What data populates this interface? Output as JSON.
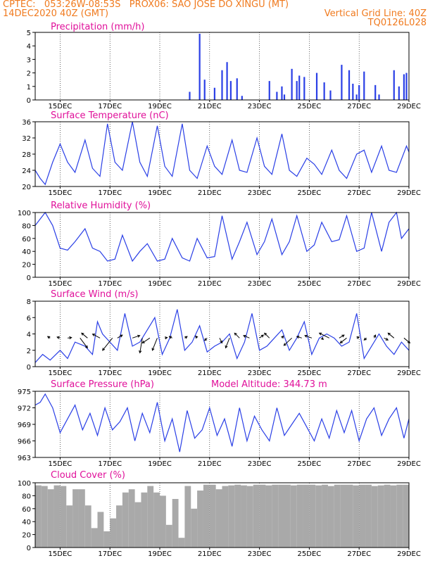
{
  "header": {
    "line1_left": "CPTEC:   053:26W-08:53S   PROX06: SAO JOSE DO XINGU (MT)",
    "line2_left": "14DEC2020 40Z (GMT)",
    "line2_right": "Vertical Grid Line: 40Z",
    "line3_right": "TQ0126L028"
  },
  "colors": {
    "header": "#f07a1e",
    "title": "#e0109a",
    "series": "#2a3fe6",
    "cloud": "#a9a9a9"
  },
  "x_axis": {
    "start_day": 14,
    "end_day": 29,
    "labels": [
      "15DEC",
      "17DEC",
      "19DEC",
      "21DEC",
      "23DEC",
      "25DEC",
      "27DEC",
      "29DEC"
    ],
    "label_days": [
      15,
      17,
      19,
      21,
      23,
      25,
      27,
      29
    ]
  },
  "chart_data": [
    {
      "type": "bar",
      "title": "Precipitation (mm/h)",
      "ylim": [
        0,
        5
      ],
      "yticks": [
        "0",
        "1",
        "2",
        "3",
        "4",
        "5"
      ],
      "x": [
        20.2,
        20.6,
        20.8,
        21.2,
        21.5,
        21.7,
        21.85,
        22.1,
        22.3,
        23.4,
        23.7,
        23.9,
        24.0,
        24.3,
        24.5,
        24.6,
        24.8,
        25.3,
        25.6,
        25.85,
        26.3,
        26.6,
        26.75,
        26.9,
        27.0,
        27.2,
        27.65,
        27.8,
        28.4,
        28.6,
        28.8,
        28.9
      ],
      "values": [
        0.6,
        4.9,
        1.5,
        0.9,
        2.2,
        2.8,
        1.4,
        1.6,
        0.3,
        1.4,
        0.6,
        1.0,
        0.4,
        2.3,
        1.4,
        1.8,
        1.7,
        2.0,
        1.3,
        0.7,
        2.6,
        2.2,
        1.2,
        0.4,
        1.1,
        2.1,
        1.1,
        0.4,
        2.2,
        1.0,
        1.9,
        2.0
      ]
    },
    {
      "type": "line",
      "title": "Surface Temperature (nC)",
      "ylim": [
        20,
        36
      ],
      "yticks": [
        "20",
        "24",
        "28",
        "32",
        "36"
      ],
      "x": [
        14.0,
        14.2,
        14.4,
        14.7,
        15.0,
        15.3,
        15.6,
        16.0,
        16.3,
        16.6,
        16.9,
        17.2,
        17.5,
        17.9,
        18.2,
        18.5,
        18.9,
        19.2,
        19.5,
        19.9,
        20.2,
        20.5,
        20.9,
        21.2,
        21.5,
        21.9,
        22.2,
        22.5,
        22.9,
        23.2,
        23.5,
        23.9,
        24.2,
        24.5,
        24.9,
        25.2,
        25.5,
        25.9,
        26.2,
        26.5,
        26.9,
        27.2,
        27.5,
        27.9,
        28.2,
        28.5,
        28.9,
        29.0
      ],
      "values": [
        24,
        22,
        20.5,
        26,
        30.5,
        26,
        23.5,
        31.5,
        24.5,
        22.5,
        35.5,
        26,
        24,
        36,
        26,
        22.5,
        35,
        25,
        22.5,
        35.5,
        24,
        22,
        30,
        25,
        23,
        31.5,
        24,
        23.5,
        32,
        25,
        23,
        33,
        24,
        22.5,
        27,
        25.5,
        23,
        29,
        24,
        22,
        28,
        29,
        23.5,
        30,
        24,
        23.5,
        30,
        28.5
      ]
    },
    {
      "type": "line",
      "title": "Relative Humidity (%)",
      "ylim": [
        0,
        100
      ],
      "yticks": [
        "0",
        "20",
        "40",
        "60",
        "80",
        "100"
      ],
      "x": [
        14.0,
        14.4,
        14.7,
        15.0,
        15.3,
        15.6,
        16.0,
        16.3,
        16.6,
        16.9,
        17.2,
        17.5,
        17.9,
        18.2,
        18.5,
        18.9,
        19.2,
        19.5,
        19.9,
        20.2,
        20.5,
        20.9,
        21.2,
        21.5,
        21.9,
        22.2,
        22.5,
        22.9,
        23.2,
        23.5,
        23.9,
        24.2,
        24.5,
        24.9,
        25.2,
        25.5,
        25.9,
        26.2,
        26.5,
        26.9,
        27.2,
        27.5,
        27.9,
        28.2,
        28.5,
        28.7,
        29.0
      ],
      "values": [
        80,
        100,
        80,
        45,
        42,
        55,
        75,
        45,
        40,
        25,
        28,
        65,
        25,
        40,
        52,
        25,
        28,
        60,
        30,
        25,
        60,
        30,
        32,
        95,
        28,
        55,
        85,
        35,
        55,
        90,
        35,
        55,
        95,
        40,
        50,
        85,
        55,
        58,
        95,
        40,
        45,
        100,
        40,
        85,
        100,
        60,
        75
      ]
    },
    {
      "type": "line",
      "title": "Surface Wind (m/s)",
      "ylim": [
        0,
        8
      ],
      "yticks": [
        "0",
        "2",
        "4",
        "6",
        "8"
      ],
      "x": [
        14.0,
        14.3,
        14.6,
        15.0,
        15.3,
        15.6,
        16.0,
        16.3,
        16.5,
        16.7,
        17.0,
        17.3,
        17.6,
        17.9,
        18.2,
        18.5,
        18.8,
        19.1,
        19.4,
        19.7,
        20.0,
        20.3,
        20.6,
        20.9,
        21.2,
        21.5,
        21.8,
        22.1,
        22.4,
        22.7,
        23.0,
        23.3,
        23.6,
        23.9,
        24.2,
        24.5,
        24.8,
        25.1,
        25.4,
        25.7,
        26.0,
        26.3,
        26.6,
        26.9,
        27.2,
        27.5,
        27.8,
        28.1,
        28.4,
        28.7,
        29.0
      ],
      "values": [
        0.5,
        1.5,
        0.8,
        2.0,
        1.0,
        3.0,
        2.5,
        1.5,
        5.5,
        4.0,
        3.0,
        2.0,
        6.5,
        2.5,
        3.0,
        4.5,
        6.0,
        1.5,
        3.5,
        7.0,
        2.0,
        3.0,
        5.0,
        1.8,
        2.5,
        3.0,
        4.0,
        1.0,
        3.0,
        6.5,
        2.0,
        2.5,
        3.5,
        4.5,
        2.0,
        3.5,
        5.5,
        1.5,
        3.5,
        4.0,
        3.5,
        2.5,
        3.0,
        6.5,
        1.0,
        2.5,
        4.0,
        2.5,
        1.5,
        3.0,
        2.0
      ],
      "arrows": {
        "x": [
          14.6,
          15.0,
          15.3,
          15.8,
          16.1,
          16.6,
          17.1,
          17.3,
          17.9,
          18.3,
          18.6,
          18.9,
          19.2,
          19.5,
          20.0,
          20.5,
          20.9,
          21.4,
          21.8,
          22.2,
          22.6,
          23.0,
          23.4,
          23.9,
          24.3,
          24.7,
          25.1,
          25.5,
          25.8,
          26.2,
          26.5,
          26.9,
          27.3,
          27.6,
          28.0,
          28.4,
          28.8
        ],
        "u": [
          -0.5,
          -0.6,
          0.8,
          1.5,
          -1.2,
          -1.5,
          -2.0,
          1.0,
          1.5,
          -0.5,
          -1.5,
          -1.0,
          0.5,
          -0.6,
          0.5,
          -0.3,
          -0.5,
          0.5,
          -0.8,
          -1.0,
          -1.2,
          0.8,
          -1.0,
          0.3,
          -1.6,
          -1.0,
          -1.4,
          0.3,
          -2.0,
          1.0,
          -1.3,
          0.5,
          -0.5,
          0.3,
          0.8,
          -1.2,
          1.2
        ],
        "v": [
          0.3,
          0.2,
          0.1,
          -2.0,
          1.0,
          0.8,
          -2.5,
          0.6,
          0.5,
          -3.0,
          -1.0,
          -2.5,
          0.1,
          0.3,
          0.3,
          0.4,
          -0.5,
          -1.0,
          -2.0,
          1.0,
          0.5,
          0.6,
          1.0,
          0.4,
          -1.5,
          0.3,
          0.5,
          -0.3,
          1.0,
          0.6,
          -1.0,
          0.2,
          -0.4,
          0.6,
          -0.4,
          1.0,
          -1.0
        ]
      }
    },
    {
      "type": "line",
      "title": "Surface Pressure (hPa)",
      "annotation": "Model Altitude: 344.73 m",
      "ylim": [
        963,
        975
      ],
      "yticks": [
        "963",
        "966",
        "969",
        "972",
        "975"
      ],
      "x": [
        14.0,
        14.2,
        14.4,
        14.7,
        15.0,
        15.3,
        15.6,
        15.9,
        16.2,
        16.5,
        16.8,
        17.1,
        17.4,
        17.7,
        18.0,
        18.3,
        18.6,
        18.9,
        19.2,
        19.5,
        19.8,
        20.1,
        20.4,
        20.7,
        21.0,
        21.3,
        21.6,
        21.9,
        22.2,
        22.5,
        22.8,
        23.1,
        23.4,
        23.7,
        24.0,
        24.3,
        24.6,
        24.9,
        25.2,
        25.5,
        25.8,
        26.1,
        26.4,
        26.7,
        27.0,
        27.3,
        27.6,
        27.9,
        28.2,
        28.5,
        28.8,
        29.0
      ],
      "values": [
        972.5,
        973,
        974.5,
        972,
        967.5,
        970,
        972.5,
        968,
        971,
        967,
        972,
        968,
        969.5,
        972,
        966,
        971,
        967.5,
        973,
        966,
        970,
        964,
        971.5,
        966.5,
        968,
        972,
        967,
        970,
        965,
        972,
        966,
        970.5,
        968,
        966,
        972,
        967,
        969,
        971,
        968.5,
        966,
        970,
        966.5,
        971.5,
        967.5,
        971.5,
        966,
        970,
        972,
        967,
        970,
        972,
        966.5,
        970
      ]
    },
    {
      "type": "bar",
      "title": "Cloud Cover (%)",
      "ylim": [
        0,
        100
      ],
      "yticks": [
        "0",
        "20",
        "40",
        "60",
        "80",
        "100"
      ],
      "x": [
        14.0,
        14.25,
        14.5,
        14.75,
        15.0,
        15.25,
        15.5,
        15.75,
        16.0,
        16.25,
        16.5,
        16.75,
        17.0,
        17.25,
        17.5,
        17.75,
        18.0,
        18.25,
        18.5,
        18.75,
        19.0,
        19.25,
        19.5,
        19.75,
        20.0,
        20.25,
        20.5,
        20.75,
        21.0,
        21.25,
        21.5,
        21.75,
        22.0,
        22.25,
        22.5,
        22.75,
        23.0,
        23.25,
        23.5,
        23.75,
        24.0,
        24.25,
        24.5,
        24.75,
        25.0,
        25.25,
        25.5,
        25.75,
        26.0,
        26.25,
        26.5,
        26.75,
        27.0,
        27.25,
        27.5,
        27.75,
        28.0,
        28.25,
        28.5,
        28.75
      ],
      "values": [
        96,
        95,
        90,
        96,
        95,
        65,
        90,
        90,
        65,
        30,
        55,
        25,
        45,
        65,
        85,
        90,
        70,
        85,
        95,
        85,
        80,
        35,
        75,
        15,
        95,
        60,
        88,
        97,
        97,
        90,
        95,
        96,
        97,
        96,
        95,
        97,
        97,
        96,
        97,
        97,
        97,
        96,
        97,
        97,
        97,
        96,
        97,
        95,
        97,
        97,
        97,
        96,
        97,
        97,
        95,
        96,
        97,
        96,
        97,
        97
      ]
    }
  ]
}
